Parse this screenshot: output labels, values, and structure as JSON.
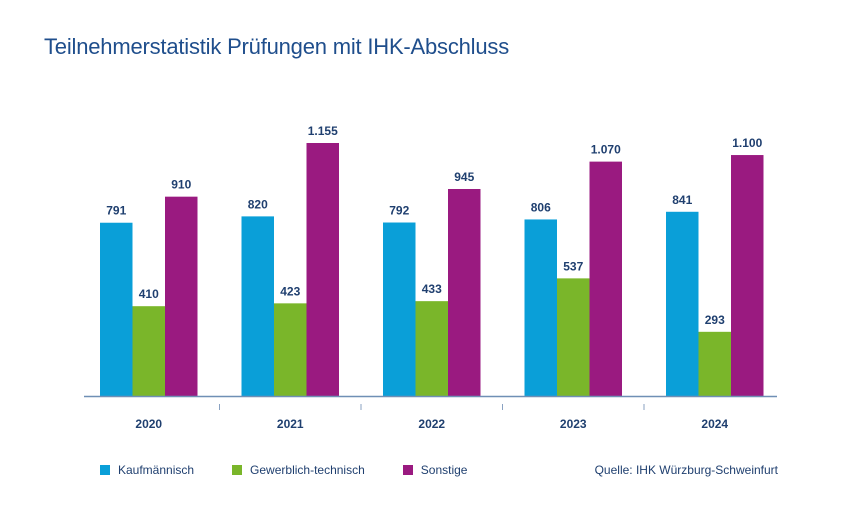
{
  "title": "Teilnehmerstatistik Prüfungen mit IHK-Abschluss",
  "source": "Quelle: IHK Würzburg-Schweinfurt",
  "chart_data": {
    "type": "bar",
    "categories": [
      "2020",
      "2021",
      "2022",
      "2023",
      "2024"
    ],
    "series": [
      {
        "name": "Kaufmännisch",
        "color": "#0a9fd8",
        "values": [
          791,
          820,
          792,
          806,
          841
        ],
        "labels": [
          "791",
          "820",
          "792",
          "806",
          "841"
        ]
      },
      {
        "name": "Gewerblich-technisch",
        "color": "#7ab62a",
        "values": [
          410,
          423,
          433,
          537,
          293
        ],
        "labels": [
          "410",
          "423",
          "433",
          "537",
          "293"
        ]
      },
      {
        "name": "Sonstige",
        "color": "#9a1a80",
        "values": [
          910,
          1155,
          945,
          1070,
          1100
        ],
        "labels": [
          "910",
          "1.155",
          "945",
          "1.070",
          "1.100"
        ]
      }
    ],
    "ylim": [
      0,
      1155
    ],
    "grid": false,
    "legend_position": "bottom-left"
  }
}
